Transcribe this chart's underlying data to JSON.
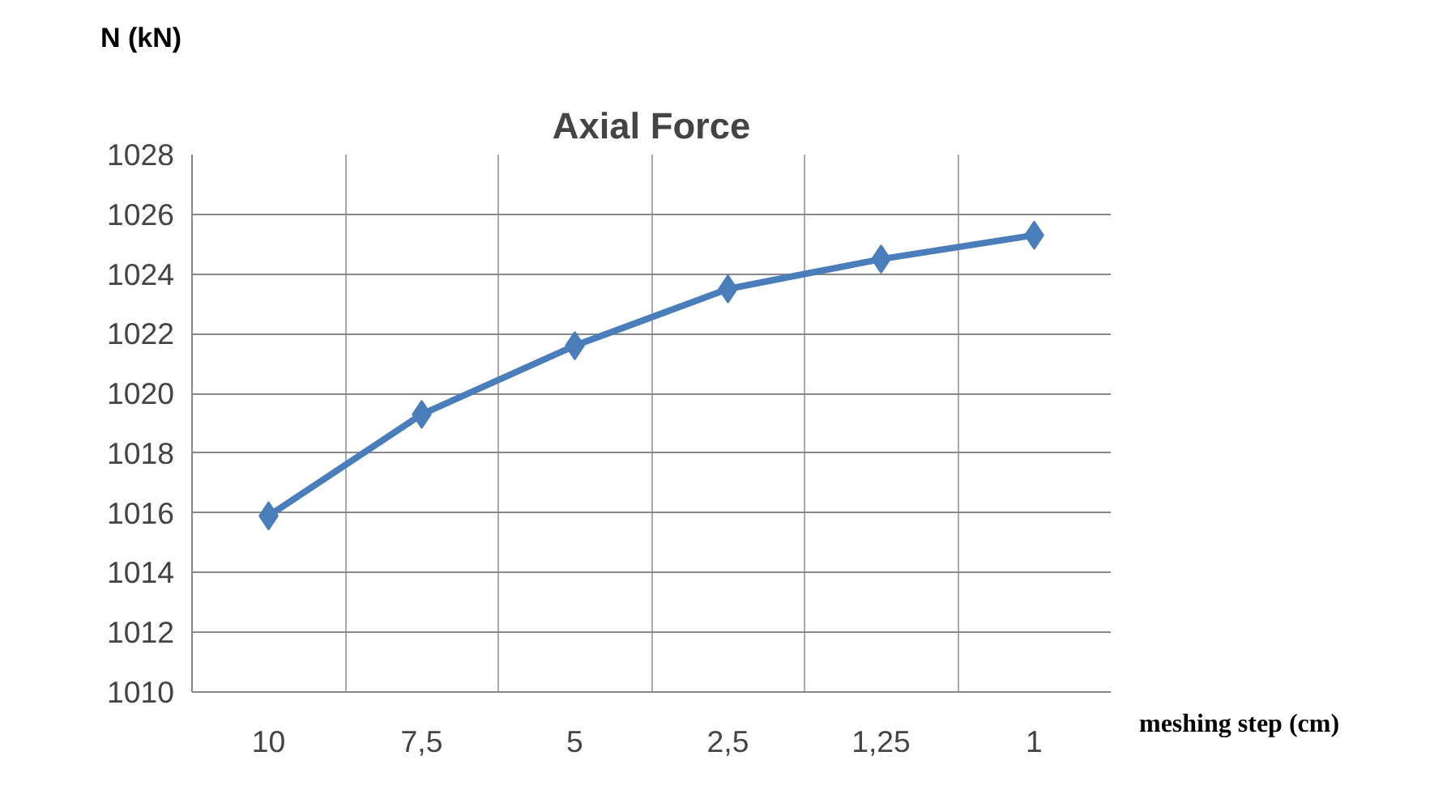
{
  "chart_data": {
    "type": "line",
    "title": "Axial Force",
    "xlabel": "meshing step (cm)",
    "ylabel": "N (kN)",
    "categories": [
      "10",
      "7,5",
      "5",
      "2,5",
      "1,25",
      "1"
    ],
    "series": [
      {
        "color": "#4a7ebb",
        "values": [
          1015.9,
          1019.3,
          1021.6,
          1023.5,
          1024.5,
          1025.3
        ]
      }
    ],
    "ylim": [
      1010,
      1028
    ],
    "yticks": [
      1010,
      1012,
      1014,
      1016,
      1018,
      1020,
      1022,
      1024,
      1026,
      1028
    ],
    "grid": true,
    "marker": "diamond",
    "line_style": "solid"
  }
}
